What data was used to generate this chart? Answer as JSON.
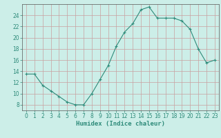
{
  "x": [
    0,
    1,
    2,
    3,
    4,
    5,
    6,
    7,
    8,
    9,
    10,
    11,
    12,
    13,
    14,
    15,
    16,
    17,
    18,
    19,
    20,
    21,
    22,
    23
  ],
  "y": [
    13.5,
    13.5,
    11.5,
    10.5,
    9.5,
    8.5,
    8.0,
    8.0,
    10.0,
    12.5,
    15.0,
    18.5,
    21.0,
    22.5,
    25.0,
    25.5,
    23.5,
    23.5,
    23.5,
    23.0,
    21.5,
    18.0,
    15.5,
    16.0
  ],
  "line_color": "#2e8b7a",
  "marker": "+",
  "marker_size": 3.5,
  "bg_color": "#cceee8",
  "grid_color": "#c8a0a0",
  "xlabel": "Humidex (Indice chaleur)",
  "xlim": [
    -0.5,
    23.5
  ],
  "ylim": [
    7,
    26
  ],
  "yticks": [
    8,
    10,
    12,
    14,
    16,
    18,
    20,
    22,
    24
  ],
  "xticks": [
    0,
    1,
    2,
    3,
    4,
    5,
    6,
    7,
    8,
    9,
    10,
    11,
    12,
    13,
    14,
    15,
    16,
    17,
    18,
    19,
    20,
    21,
    22,
    23
  ],
  "tick_fontsize": 5.5,
  "label_fontsize": 6.5
}
